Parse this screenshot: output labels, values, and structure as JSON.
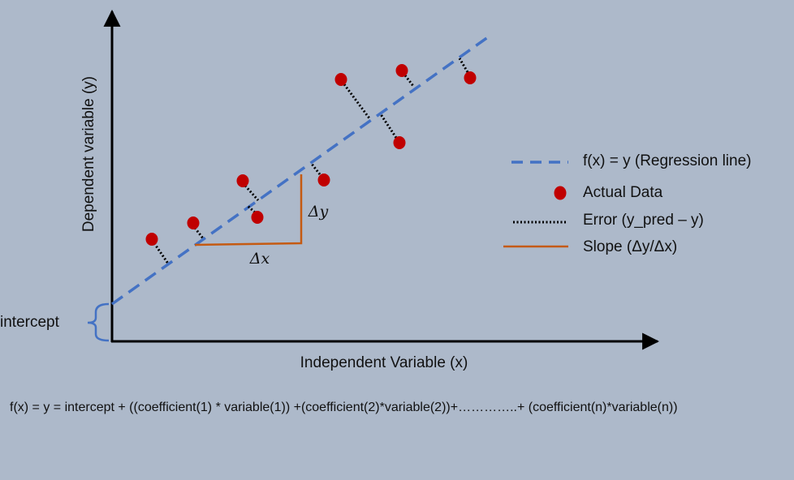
{
  "diagram": {
    "y_axis_label": "Dependent variable (y)",
    "x_axis_label": "Independent Variable (x)",
    "intercept_label": "intercept",
    "delta_x_label": "Δx",
    "delta_y_label": "Δy",
    "legend": [
      "f(x) = y (Regression line)",
      "Actual Data",
      "Error (y_pred – y)",
      "Slope (Δy/Δx)"
    ],
    "formula": "f(x) = y  = intercept + ((coefficient(1) * variable(1)) +(coefficient(2)*variable(2))+…………..+ (coefficient(n)*variable(n))"
  }
}
